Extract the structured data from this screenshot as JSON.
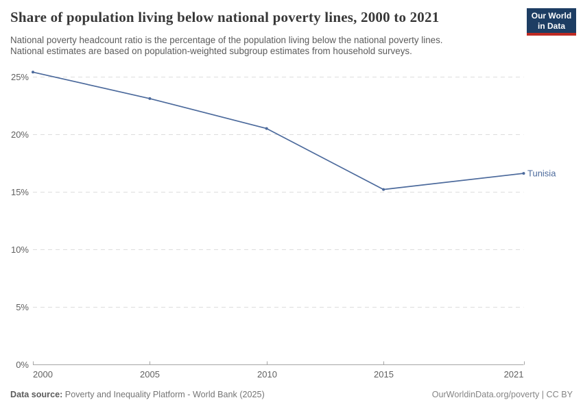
{
  "header": {
    "title": "Share of population living below national poverty lines, 2000 to 2021",
    "subtitle_line1": "National poverty headcount ratio is the percentage of the population living below the national poverty lines.",
    "subtitle_line2": "National estimates are based on population-weighted subgroup estimates from household surveys.",
    "logo": {
      "line1": "Our World",
      "line2": "in Data",
      "bg_color": "#1d3d63",
      "accent_color": "#be2a23"
    }
  },
  "chart_data": {
    "type": "line",
    "title": "Share of population living below national poverty lines, 2000 to 2021",
    "xlabel": "",
    "ylabel": "",
    "xlim": [
      2000,
      2021
    ],
    "ylim": [
      0,
      25
    ],
    "grid": "horizontal-dashed",
    "legend_position": "label-at-line-end",
    "x": [
      2000,
      2005,
      2010,
      2015,
      2021
    ],
    "series": [
      {
        "name": "Tunisia",
        "values": [
          25.4,
          23.1,
          20.5,
          15.2,
          16.6
        ],
        "color": "#4C6A9C"
      }
    ],
    "x_ticks": [
      {
        "value": 2000,
        "label": "2000"
      },
      {
        "value": 2005,
        "label": "2005"
      },
      {
        "value": 2010,
        "label": "2010"
      },
      {
        "value": 2015,
        "label": "2015"
      },
      {
        "value": 2021,
        "label": "2021"
      }
    ],
    "y_ticks": [
      {
        "value": 0,
        "label": "0%"
      },
      {
        "value": 5,
        "label": "5%"
      },
      {
        "value": 10,
        "label": "10%"
      },
      {
        "value": 15,
        "label": "15%"
      },
      {
        "value": 20,
        "label": "20%"
      },
      {
        "value": 25,
        "label": "25%"
      }
    ],
    "colors": {
      "grid": "#dddddd",
      "axis": "#a5a5a5",
      "tick_text": "#606060",
      "series": "#4C6A9C"
    }
  },
  "footer": {
    "data_source_label": "Data source:",
    "data_source_value": "Poverty and Inequality Platform - World Bank (2025)",
    "attribution": "OurWorldinData.org/poverty | CC BY"
  }
}
